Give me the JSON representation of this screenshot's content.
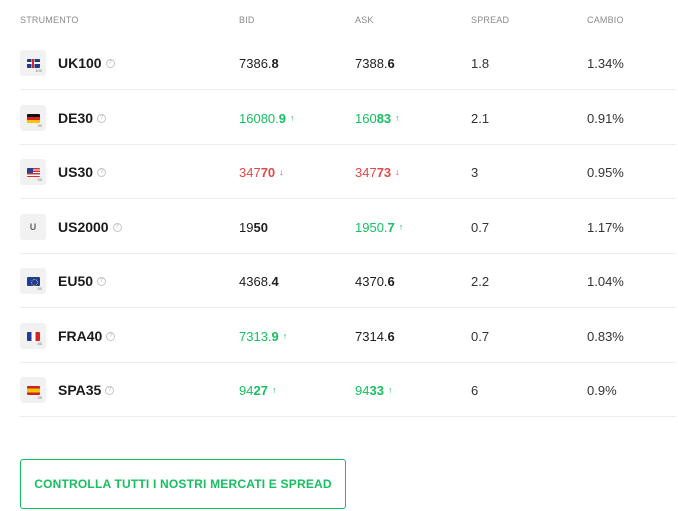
{
  "columns": {
    "instrument": "STRUMENTO",
    "bid": "BID",
    "ask": "ASK",
    "spread": "SPREAD",
    "change": "CAMBIO"
  },
  "info_glyph": "?",
  "rows": [
    {
      "name": "UK100",
      "icon": "uk-flag-icon",
      "flag_num": "100",
      "bid": {
        "pre": "7386.",
        "bold": "8",
        "dir": "none"
      },
      "ask": {
        "pre": "7388.",
        "bold": "6",
        "dir": "none"
      },
      "spread": "1.8",
      "change": "1.34%"
    },
    {
      "name": "DE30",
      "icon": "germany-flag-icon",
      "flag_num": "30",
      "bid": {
        "pre": "16080.",
        "bold": "9",
        "dir": "up"
      },
      "ask": {
        "pre": "160",
        "bold": "83",
        "dir": "up"
      },
      "spread": "2.1",
      "change": "0.91%"
    },
    {
      "name": "US30",
      "icon": "us-flag-icon",
      "flag_num": "30",
      "bid": {
        "pre": "347",
        "bold": "70",
        "dir": "down"
      },
      "ask": {
        "pre": "347",
        "bold": "73",
        "dir": "down"
      },
      "spread": "3",
      "change": "0.95%"
    },
    {
      "name": "US2000",
      "icon": "letter-u-icon",
      "flag_letter": "U",
      "bid": {
        "pre": "19",
        "bold": "50",
        "dir": "none"
      },
      "ask": {
        "pre": "1950.",
        "bold": "7",
        "dir": "up"
      },
      "spread": "0.7",
      "change": "1.17%"
    },
    {
      "name": "EU50",
      "icon": "eu-flag-icon",
      "flag_num": "50",
      "bid": {
        "pre": "4368.",
        "bold": "4",
        "dir": "none"
      },
      "ask": {
        "pre": "4370.",
        "bold": "6",
        "dir": "none"
      },
      "spread": "2.2",
      "change": "1.04%"
    },
    {
      "name": "FRA40",
      "icon": "france-flag-icon",
      "flag_num": "40",
      "bid": {
        "pre": "7313.",
        "bold": "9",
        "dir": "up"
      },
      "ask": {
        "pre": "7314.",
        "bold": "6",
        "dir": "none"
      },
      "spread": "0.7",
      "change": "0.83%"
    },
    {
      "name": "SPA35",
      "icon": "spain-flag-icon",
      "flag_num": "35",
      "bid": {
        "pre": "94",
        "bold": "27",
        "dir": "up"
      },
      "ask": {
        "pre": "94",
        "bold": "33",
        "dir": "up"
      },
      "spread": "6",
      "change": "0.9%"
    }
  ],
  "arrows": {
    "up": "↑",
    "down": "↓"
  },
  "colors": {
    "up": "#16c060",
    "down": "#e04a4a",
    "accent": "#16c060"
  },
  "cta": {
    "label": "CONTROLLA TUTTI I NOSTRI MERCATI E SPREAD"
  }
}
